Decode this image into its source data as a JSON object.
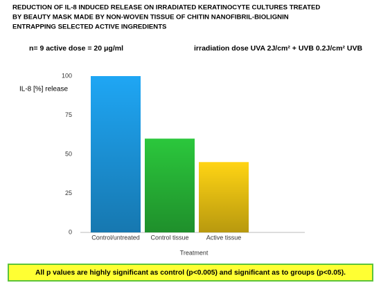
{
  "chart_data": {
    "type": "bar",
    "title": [
      "REDUCTION OF IL-8 INDUCED RELEASE ON IRRADIATED KERATINOCYTE CULTURES TREATED",
      "BY BEAUTY MASK MADE BY NON-WOVEN TISSUE OF CHITIN NANOFIBRIL-BIOLIGNIN",
      "ENTRAPPING SELECTED ACTIVE INGREDIENTS"
    ],
    "annotations": [
      "n= 9 active dose = 20 μg/ml",
      "irradiation dose UVA 2J/cm² + UVB 0.2J/cm² UVB"
    ],
    "ylabel": "IL-8 [%] release",
    "xlabel": "Treatment",
    "footnote": "All p values are highly significant as control (p<0.005) and significant as to groups (p<0.05).",
    "categories": [
      "Control/untreated",
      "Control tissue",
      "Active tissue"
    ],
    "values": [
      100,
      60,
      45
    ],
    "colors": [
      "#1fa6f4",
      "#2bc73c",
      "#ffd414"
    ],
    "ylim": [
      0,
      100
    ],
    "yticks": [
      0,
      25,
      50,
      75,
      100
    ],
    "grid": false
  }
}
